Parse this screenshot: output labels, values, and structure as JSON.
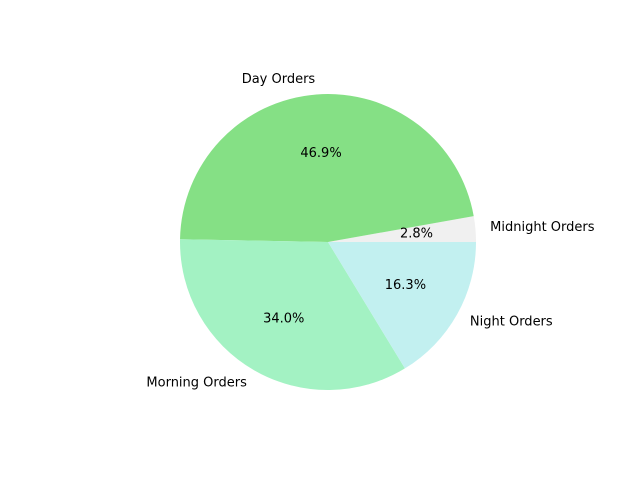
{
  "chart_data": {
    "type": "pie",
    "title": "",
    "start_angle": 0,
    "direction": "counterclockwise",
    "slices": [
      {
        "label": "Midnight Orders",
        "percent_label": "2.8%",
        "value": 2.8,
        "color": "#f0f0f0"
      },
      {
        "label": "Day Orders",
        "percent_label": "46.9%",
        "value": 46.9,
        "color": "#85e085"
      },
      {
        "label": "Morning Orders",
        "percent_label": "34.0%",
        "value": 34.0,
        "color": "#a3f2c3"
      },
      {
        "label": "Night Orders",
        "percent_label": "16.3%",
        "value": 16.3,
        "color": "#c2f0f0"
      }
    ]
  }
}
